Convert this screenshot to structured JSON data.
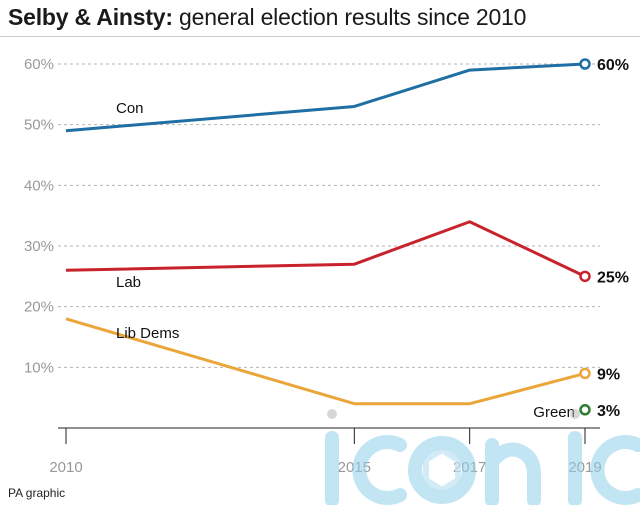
{
  "header": {
    "title_bold": "Selby & Ainsty:",
    "title_rest": " general election results since 2010"
  },
  "source": "PA graphic",
  "watermark": "iconic",
  "chart_data": {
    "type": "line",
    "title": "Selby & Ainsty: general election results since 2010",
    "x": [
      2010,
      2015,
      2017,
      2019
    ],
    "x_tick_labels": [
      "2010",
      "2015",
      "2017",
      "2019"
    ],
    "ylim": [
      0,
      60
    ],
    "y_ticks": [
      10,
      20,
      30,
      40,
      50,
      60
    ],
    "y_tick_labels": [
      "10%",
      "20%",
      "30%",
      "40%",
      "50%",
      "60%"
    ],
    "grid": true,
    "series": [
      {
        "name": "Con",
        "color": "#1f6fa5",
        "values": [
          49,
          53,
          59,
          60
        ],
        "end_label": "60%"
      },
      {
        "name": "Lab",
        "color": "#c8232c",
        "values": [
          26,
          27,
          34,
          25
        ],
        "end_label": "25%"
      },
      {
        "name": "Lib Dems",
        "color": "#eba63a",
        "values": [
          18,
          4,
          4,
          9
        ],
        "end_label": "9%"
      },
      {
        "name": "Green",
        "color": "#2e7d32",
        "values": [
          null,
          null,
          null,
          3
        ],
        "end_label": "3%"
      }
    ]
  }
}
